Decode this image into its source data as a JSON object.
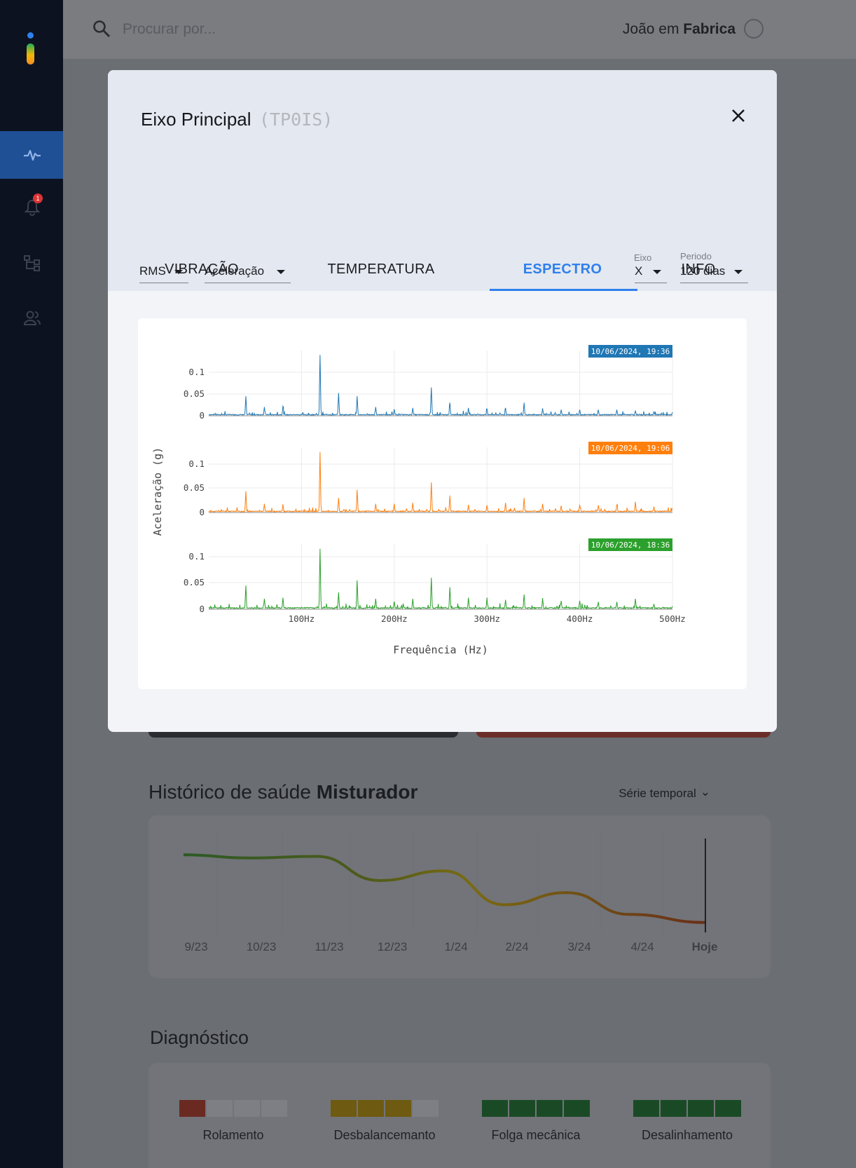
{
  "topbar": {
    "search_placeholder": "Procurar por...",
    "user_name": "João em",
    "user_location": "Fabrica"
  },
  "sidebar": {
    "items": [
      {
        "icon": "vibration-icon",
        "active": true
      },
      {
        "icon": "bell-icon",
        "badge": "1"
      },
      {
        "icon": "hierarchy-icon"
      },
      {
        "icon": "users-icon"
      }
    ]
  },
  "modal": {
    "title": "Eixo Principal",
    "code": "(TP0IS)",
    "tabs": [
      "VIBRAÇÃO",
      "TEMPERATURA",
      "ESPECTRO",
      "INFO"
    ],
    "active_tab": "ESPECTRO",
    "filters": {
      "metric": "RMS",
      "quantity": "Aceleração",
      "axis_label": "Eixo",
      "axis_value": "X",
      "period_label": "Periodo",
      "period_value": "120 dias"
    }
  },
  "chart_data": {
    "type": "line",
    "xlabel": "Frequência (Hz)",
    "ylabel": "Aceleração (g)",
    "xlim": [
      0,
      500
    ],
    "ylim": [
      0,
      0.14
    ],
    "x_ticks": [
      "100Hz",
      "200Hz",
      "300Hz",
      "400Hz",
      "500Hz"
    ],
    "y_ticks": [
      "0",
      "0.05",
      "0.1"
    ],
    "grid": true,
    "peaks_x": [
      20,
      40,
      60,
      80,
      100,
      120,
      140,
      160,
      180,
      200,
      220,
      240,
      260,
      280,
      300,
      320,
      340,
      360,
      380,
      400,
      420,
      440,
      460,
      480,
      500
    ],
    "series": [
      {
        "name": "10/06/2024, 19:36",
        "color": "#1f77b4",
        "peaks_y": [
          0.003,
          0.045,
          0.02,
          0.022,
          0.004,
          0.14,
          0.052,
          0.045,
          0.02,
          0.015,
          0.018,
          0.065,
          0.03,
          0.018,
          0.016,
          0.018,
          0.03,
          0.017,
          0.014,
          0.014,
          0.014,
          0.014,
          0.012,
          0.01,
          0.008
        ]
      },
      {
        "name": "10/06/2024, 19:06",
        "color": "#ff7f0e",
        "peaks_y": [
          0.003,
          0.044,
          0.018,
          0.017,
          0.004,
          0.125,
          0.03,
          0.047,
          0.018,
          0.018,
          0.02,
          0.062,
          0.035,
          0.016,
          0.015,
          0.02,
          0.03,
          0.018,
          0.014,
          0.016,
          0.014,
          0.016,
          0.022,
          0.012,
          0.008
        ]
      },
      {
        "name": "10/06/2024, 18:36",
        "color": "#2ca02c",
        "peaks_y": [
          0.003,
          0.045,
          0.02,
          0.022,
          0.004,
          0.115,
          0.032,
          0.055,
          0.02,
          0.015,
          0.02,
          0.06,
          0.042,
          0.022,
          0.016,
          0.018,
          0.028,
          0.02,
          0.016,
          0.016,
          0.014,
          0.014,
          0.02,
          0.01,
          0.006
        ]
      }
    ]
  },
  "background": {
    "history_title_prefix": "Histórico de saúde",
    "history_title_machine": "Misturador",
    "series_select": "Série temporal",
    "history_ticks": [
      "9/23",
      "10/23",
      "11/23",
      "12/23",
      "1/24",
      "2/24",
      "3/24",
      "4/24",
      "Hoje"
    ],
    "history_values": [
      0.92,
      0.88,
      0.9,
      0.6,
      0.72,
      0.3,
      0.45,
      0.18,
      0.08
    ],
    "diagnostic_title": "Diagnóstico",
    "diagnostics": [
      {
        "label": "Rolamento",
        "level": 1,
        "color": "#6a2a22"
      },
      {
        "label": "Desbalancemanto",
        "level": 3,
        "color": "#6e5a10"
      },
      {
        "label": "Folga mecânica",
        "level": 4,
        "color": "#1a4a25"
      },
      {
        "label": "Desalinhamento",
        "level": 4,
        "color": "#1a4a25"
      }
    ]
  }
}
